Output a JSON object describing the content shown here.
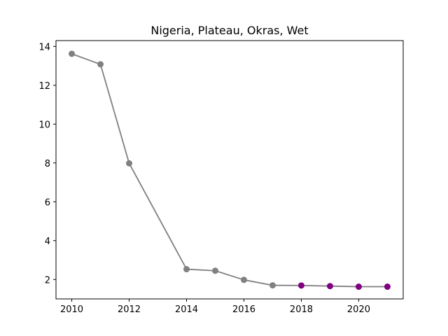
{
  "chart_data": {
    "type": "line",
    "title": "Nigeria, Plateau, Okras, Wet",
    "xlabel": "",
    "ylabel": "",
    "xlim": [
      2009.45,
      2021.55
    ],
    "ylim": [
      1.0,
      14.3
    ],
    "x_ticks": [
      2010,
      2012,
      2014,
      2016,
      2018,
      2020
    ],
    "y_ticks": [
      2,
      4,
      6,
      8,
      10,
      12,
      14
    ],
    "x_tick_labels": [
      "2010",
      "2012",
      "2014",
      "2016",
      "2018",
      "2020"
    ],
    "y_tick_labels": [
      "2",
      "4",
      "6",
      "8",
      "10",
      "12",
      "14"
    ],
    "grid": false,
    "legend": "none",
    "series": [
      {
        "x": [
          2010,
          2011,
          2012,
          2014,
          2015,
          2016,
          2017,
          2018,
          2019,
          2020,
          2021
        ],
        "y": [
          13.62,
          13.08,
          7.98,
          2.53,
          2.45,
          1.98,
          1.7,
          1.69,
          1.66,
          1.63,
          1.63
        ],
        "line_color": "#808080",
        "marker_colors": [
          "#808080",
          "#808080",
          "#808080",
          "#808080",
          "#808080",
          "#808080",
          "#808080",
          "#800080",
          "#800080",
          "#800080",
          "#800080"
        ]
      }
    ]
  }
}
